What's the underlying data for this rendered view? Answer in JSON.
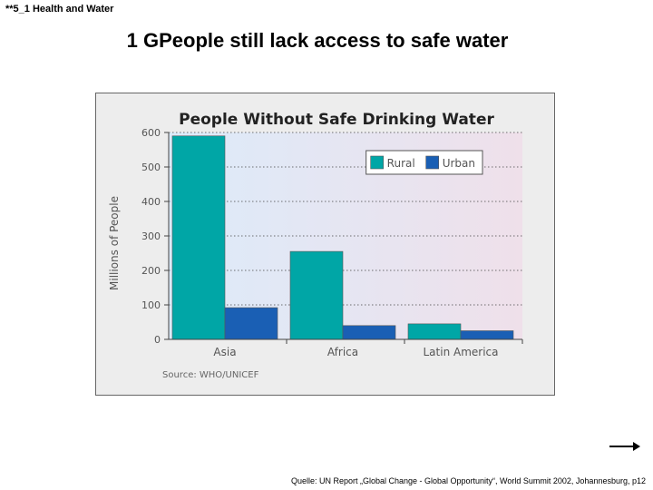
{
  "slide": {
    "tag": "**5_1 Health and Water",
    "title": "1 GPeople still lack access to safe water",
    "source_note": "Quelle: UN Report „Global Change - Global Opportunity“, World Summit 2002, Johannesburg, p12"
  },
  "icons": {
    "next": "arrow-right-icon"
  },
  "chart_data": {
    "type": "bar",
    "title": "People Without Safe Drinking Water",
    "xlabel": "",
    "ylabel": "Millions of People",
    "categories": [
      "Asia",
      "Africa",
      "Latin America"
    ],
    "series": [
      {
        "name": "Rural",
        "color": "#00a6a6",
        "values": [
          590,
          255,
          45
        ]
      },
      {
        "name": "Urban",
        "color": "#1a5fb4",
        "values": [
          92,
          40,
          25
        ]
      }
    ],
    "ylim": [
      0,
      600
    ],
    "yticks": [
      0,
      100,
      200,
      300,
      400,
      500,
      600
    ],
    "ytick_labels": [
      "0",
      "100",
      "200",
      "300",
      "400",
      "500",
      "600"
    ],
    "grid": true,
    "legend_position": "top-right",
    "source": "Source: WHO/UNICEF"
  }
}
